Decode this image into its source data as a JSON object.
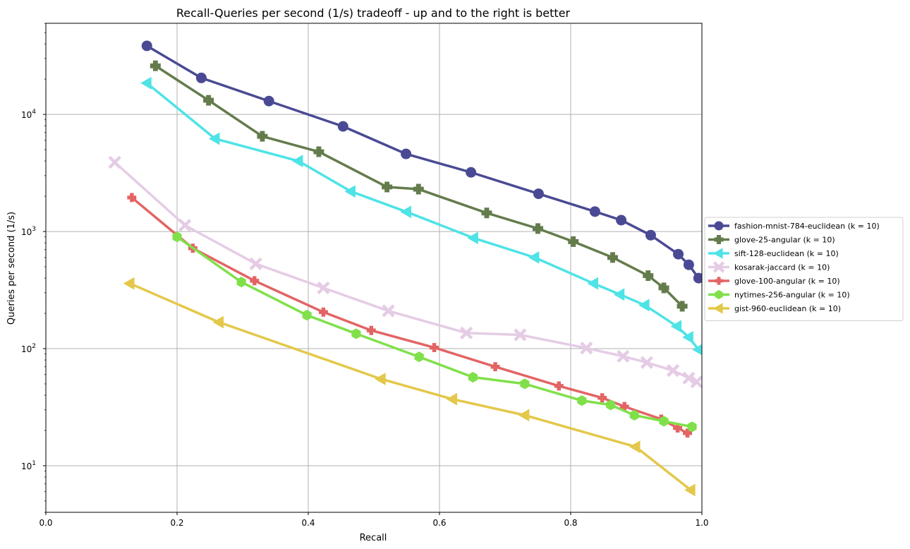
{
  "chart_data": {
    "type": "line",
    "title": "Recall-Queries per second (1/s) tradeoff - up and to the right is better",
    "xlabel": "Recall",
    "ylabel": "Queries per second (1/s)",
    "xlim": [
      0.0,
      1.0
    ],
    "ylim": [
      4.0,
      60000
    ],
    "yscale": "log",
    "grid": true,
    "legend_position": "center-right-outside",
    "xticks": [
      {
        "value": 0.0,
        "label": "0.0"
      },
      {
        "value": 0.2,
        "label": "0.2"
      },
      {
        "value": 0.4,
        "label": "0.4"
      },
      {
        "value": 0.6,
        "label": "0.6"
      },
      {
        "value": 0.8,
        "label": "0.8"
      },
      {
        "value": 1.0,
        "label": "1.0"
      }
    ],
    "yticks": [
      {
        "value": 10,
        "base": "10",
        "exp": "1"
      },
      {
        "value": 100,
        "base": "10",
        "exp": "2"
      },
      {
        "value": 1000,
        "base": "10",
        "exp": "3"
      },
      {
        "value": 10000,
        "base": "10",
        "exp": "4"
      }
    ],
    "series": [
      {
        "name": "fashion-mnist-784-euclidean (k = 10)",
        "color": "#4a4a94",
        "marker": "circle",
        "x": [
          0.154,
          0.237,
          0.34,
          0.453,
          0.549,
          0.648,
          0.751,
          0.837,
          0.877,
          0.922,
          0.964,
          0.98,
          0.995
        ],
        "y": [
          38500,
          20500,
          13000,
          7900,
          4600,
          3200,
          2100,
          1480,
          1250,
          930,
          640,
          520,
          400
        ]
      },
      {
        "name": "glove-25-angular (k = 10)",
        "color": "#647c4c",
        "marker": "plus-filled",
        "x": [
          0.167,
          0.248,
          0.33,
          0.416,
          0.52,
          0.568,
          0.672,
          0.75,
          0.804,
          0.864,
          0.918,
          0.942,
          0.97
        ],
        "y": [
          26000,
          13200,
          6500,
          4800,
          2400,
          2300,
          1440,
          1060,
          820,
          600,
          420,
          330,
          230
        ]
      },
      {
        "name": "sift-128-euclidean (k = 10)",
        "color": "#4ee3e6",
        "marker": "triangle-left",
        "x": [
          0.154,
          0.258,
          0.385,
          0.465,
          0.55,
          0.652,
          0.745,
          0.835,
          0.875,
          0.913,
          0.962,
          0.98,
          0.995
        ],
        "y": [
          18500,
          6200,
          4000,
          2200,
          1470,
          880,
          600,
          360,
          290,
          235,
          155,
          125,
          98
        ]
      },
      {
        "name": "kosarak-jaccard (k = 10)",
        "color": "#e5cce5",
        "marker": "x-filled",
        "x": [
          0.105,
          0.212,
          0.32,
          0.423,
          0.522,
          0.641,
          0.723,
          0.824,
          0.88,
          0.916,
          0.956,
          0.98,
          0.992
        ],
        "y": [
          3900,
          1130,
          530,
          330,
          210,
          136,
          131,
          101,
          86,
          76,
          65,
          56,
          52
        ]
      },
      {
        "name": "glove-100-angular (k = 10)",
        "color": "#e36464",
        "marker": "plus",
        "x": [
          0.131,
          0.224,
          0.318,
          0.423,
          0.496,
          0.592,
          0.685,
          0.782,
          0.848,
          0.882,
          0.938,
          0.963,
          0.978
        ],
        "y": [
          1950,
          720,
          380,
          205,
          143,
          102,
          70,
          48,
          38,
          32,
          25,
          21,
          19
        ]
      },
      {
        "name": "nytimes-256-angular (k = 10)",
        "color": "#80e04a",
        "marker": "hexagon",
        "x": [
          0.2,
          0.298,
          0.398,
          0.473,
          0.569,
          0.651,
          0.73,
          0.817,
          0.861,
          0.897,
          0.942,
          0.985
        ],
        "y": [
          900,
          370,
          193,
          134,
          85,
          57,
          50,
          36,
          33,
          27,
          24,
          21.5
        ]
      },
      {
        "name": "gist-960-euclidean (k = 10)",
        "color": "#e3c84a",
        "marker": "triangle-left",
        "x": [
          0.128,
          0.264,
          0.511,
          0.62,
          0.73,
          0.899,
          0.983
        ],
        "y": [
          360,
          168,
          55,
          37,
          27,
          14.5,
          6.2
        ]
      }
    ]
  }
}
